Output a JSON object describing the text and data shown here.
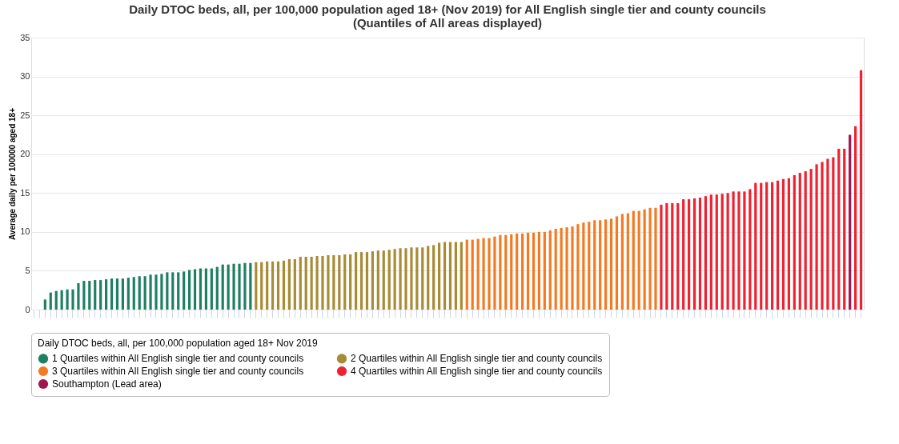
{
  "chart_data": {
    "type": "bar",
    "title": "Daily DTOC beds, all, per 100,000 population aged 18+ (Nov 2019) for All English single tier and county councils (Quantiles of All areas displayed)",
    "ylabel": "Average daily per 100000 aged 18+",
    "legend_title": "Daily DTOC beds, all, per 100,000 population aged 18+ Nov 2019",
    "categories": [
      null,
      null,
      null,
      null,
      null,
      null,
      null,
      null,
      null,
      null,
      null,
      null,
      null,
      null,
      null,
      null,
      null,
      null,
      null,
      null,
      null,
      null,
      null,
      null,
      null,
      null,
      null,
      null,
      null,
      null,
      null,
      null,
      null,
      null,
      null,
      null,
      null,
      null,
      null,
      null,
      null,
      null,
      null,
      null,
      null,
      null,
      null,
      null,
      null,
      null,
      null,
      null,
      null,
      null,
      null,
      null,
      null,
      null,
      null,
      null,
      null,
      null,
      null,
      null,
      null,
      null,
      null,
      null,
      null,
      null,
      null,
      null,
      null,
      null,
      null,
      null,
      null,
      null,
      null,
      null,
      null,
      null,
      null,
      null,
      null,
      null,
      null,
      null,
      null,
      null,
      null,
      null,
      null,
      null,
      null,
      null,
      null,
      null,
      null,
      null,
      null,
      null,
      null,
      null,
      null,
      null,
      null,
      null,
      null,
      null,
      null,
      null,
      null,
      null,
      null,
      null,
      null,
      null,
      null,
      null,
      null,
      null,
      null,
      null,
      null,
      null,
      null,
      null,
      null,
      null,
      null,
      null,
      null,
      null,
      null,
      null,
      null,
      null,
      null,
      null,
      null,
      null,
      null,
      null,
      null,
      null,
      null,
      null,
      null,
      null
    ],
    "series": [
      {
        "name": "1 Quartiles within All English single tier and county councils",
        "color": "#1f7f62",
        "values": [
          null,
          null,
          1.3,
          2.2,
          2.4,
          2.5,
          2.6,
          2.6,
          3.4,
          3.7,
          3.7,
          3.8,
          3.8,
          3.9,
          4.0,
          4.0,
          4.0,
          4.1,
          4.2,
          4.3,
          4.3,
          4.5,
          4.5,
          4.6,
          4.8,
          4.8,
          4.8,
          4.9,
          5.1,
          5.2,
          5.3,
          5.3,
          5.3,
          5.5,
          5.8,
          5.8,
          5.9,
          5.9,
          6.0,
          6.0,
          null,
          null,
          null,
          null,
          null,
          null,
          null,
          null,
          null,
          null,
          null,
          null,
          null,
          null,
          null,
          null,
          null,
          null,
          null,
          null,
          null,
          null,
          null,
          null,
          null,
          null,
          null,
          null,
          null,
          null,
          null,
          null,
          null,
          null,
          null,
          null,
          null,
          null,
          null,
          null,
          null,
          null,
          null,
          null,
          null,
          null,
          null,
          null,
          null,
          null,
          null,
          null,
          null,
          null,
          null,
          null,
          null,
          null,
          null,
          null,
          null,
          null,
          null,
          null,
          null,
          null,
          null,
          null,
          null,
          null,
          null,
          null,
          null,
          null,
          null,
          null,
          null,
          null,
          null,
          null,
          null,
          null,
          null,
          null,
          null,
          null,
          null,
          null,
          null,
          null,
          null,
          null,
          null,
          null,
          null,
          null,
          null,
          null,
          null,
          null,
          null,
          null,
          null,
          null,
          null,
          null,
          null,
          null,
          null,
          null
        ]
      },
      {
        "name": "2 Quartiles within All English single tier and county councils",
        "color": "#a88b35",
        "values": [
          null,
          null,
          null,
          null,
          null,
          null,
          null,
          null,
          null,
          null,
          null,
          null,
          null,
          null,
          null,
          null,
          null,
          null,
          null,
          null,
          null,
          null,
          null,
          null,
          null,
          null,
          null,
          null,
          null,
          null,
          null,
          null,
          null,
          null,
          null,
          null,
          null,
          null,
          null,
          null,
          6.1,
          6.1,
          6.2,
          6.2,
          6.2,
          6.3,
          6.5,
          6.5,
          6.8,
          6.8,
          6.8,
          6.9,
          6.9,
          7.0,
          7.0,
          7.0,
          7.1,
          7.1,
          7.4,
          7.4,
          7.4,
          7.5,
          7.6,
          7.6,
          7.7,
          7.8,
          7.9,
          7.9,
          8.0,
          8.0,
          8.0,
          8.2,
          8.3,
          8.6,
          8.7,
          8.7,
          8.7,
          8.7,
          null,
          null,
          null,
          null,
          null,
          null,
          null,
          null,
          null,
          null,
          null,
          null,
          null,
          null,
          null,
          null,
          null,
          null,
          null,
          null,
          null,
          null,
          null,
          null,
          null,
          null,
          null,
          null,
          null,
          null,
          null,
          null,
          null,
          null,
          null,
          null,
          null,
          null,
          null,
          null,
          null,
          null,
          null,
          null,
          null,
          null,
          null,
          null,
          null,
          null,
          null,
          null,
          null,
          null,
          null,
          null,
          null,
          null,
          null,
          null,
          null,
          null,
          null,
          null,
          null,
          null,
          null,
          null,
          null,
          null,
          null,
          null
        ]
      },
      {
        "name": "3 Quartiles within All English single tier and county councils",
        "color": "#f47a22",
        "values": [
          null,
          null,
          null,
          null,
          null,
          null,
          null,
          null,
          null,
          null,
          null,
          null,
          null,
          null,
          null,
          null,
          null,
          null,
          null,
          null,
          null,
          null,
          null,
          null,
          null,
          null,
          null,
          null,
          null,
          null,
          null,
          null,
          null,
          null,
          null,
          null,
          null,
          null,
          null,
          null,
          null,
          null,
          null,
          null,
          null,
          null,
          null,
          null,
          null,
          null,
          null,
          null,
          null,
          null,
          null,
          null,
          null,
          null,
          null,
          null,
          null,
          null,
          null,
          null,
          null,
          null,
          null,
          null,
          null,
          null,
          null,
          null,
          null,
          null,
          null,
          null,
          null,
          null,
          9.0,
          9.0,
          9.1,
          9.2,
          9.2,
          9.4,
          9.6,
          9.6,
          9.7,
          9.8,
          9.8,
          9.9,
          9.9,
          10.0,
          10.0,
          10.2,
          10.4,
          10.5,
          10.6,
          10.7,
          11.0,
          11.2,
          11.3,
          11.5,
          11.5,
          11.6,
          11.7,
          12.0,
          12.3,
          12.4,
          12.7,
          12.7,
          12.9,
          13.1,
          13.1,
          null,
          null,
          null,
          null,
          null,
          null,
          null,
          null,
          null,
          null,
          null,
          null,
          null,
          null,
          null,
          null,
          null,
          null,
          null,
          null,
          null,
          null,
          null,
          null,
          null,
          null,
          null,
          null,
          null,
          null,
          null,
          null,
          null,
          null,
          null,
          null,
          null
        ]
      },
      {
        "name": "4 Quartiles within All English single tier and county councils",
        "color": "#ee2231",
        "values": [
          null,
          null,
          null,
          null,
          null,
          null,
          null,
          null,
          null,
          null,
          null,
          null,
          null,
          null,
          null,
          null,
          null,
          null,
          null,
          null,
          null,
          null,
          null,
          null,
          null,
          null,
          null,
          null,
          null,
          null,
          null,
          null,
          null,
          null,
          null,
          null,
          null,
          null,
          null,
          null,
          null,
          null,
          null,
          null,
          null,
          null,
          null,
          null,
          null,
          null,
          null,
          null,
          null,
          null,
          null,
          null,
          null,
          null,
          null,
          null,
          null,
          null,
          null,
          null,
          null,
          null,
          null,
          null,
          null,
          null,
          null,
          null,
          null,
          null,
          null,
          null,
          null,
          null,
          null,
          null,
          null,
          null,
          null,
          null,
          null,
          null,
          null,
          null,
          null,
          null,
          null,
          null,
          null,
          null,
          null,
          null,
          null,
          null,
          null,
          null,
          null,
          null,
          null,
          null,
          null,
          null,
          null,
          null,
          null,
          null,
          null,
          null,
          null,
          13.5,
          13.7,
          13.7,
          13.7,
          14.2,
          14.2,
          14.3,
          14.4,
          14.6,
          14.8,
          14.8,
          14.9,
          15.0,
          15.2,
          15.2,
          15.2,
          15.5,
          16.3,
          16.3,
          16.4,
          16.4,
          16.6,
          16.8,
          16.9,
          17.3,
          17.6,
          17.8,
          18.1,
          18.7,
          19.0,
          19.4,
          19.6,
          20.7,
          20.7,
          null,
          23.6,
          30.8
        ]
      },
      {
        "name": "Southampton (Lead area)",
        "color": "#a01750",
        "values": [
          null,
          null,
          null,
          null,
          null,
          null,
          null,
          null,
          null,
          null,
          null,
          null,
          null,
          null,
          null,
          null,
          null,
          null,
          null,
          null,
          null,
          null,
          null,
          null,
          null,
          null,
          null,
          null,
          null,
          null,
          null,
          null,
          null,
          null,
          null,
          null,
          null,
          null,
          null,
          null,
          null,
          null,
          null,
          null,
          null,
          null,
          null,
          null,
          null,
          null,
          null,
          null,
          null,
          null,
          null,
          null,
          null,
          null,
          null,
          null,
          null,
          null,
          null,
          null,
          null,
          null,
          null,
          null,
          null,
          null,
          null,
          null,
          null,
          null,
          null,
          null,
          null,
          null,
          null,
          null,
          null,
          null,
          null,
          null,
          null,
          null,
          null,
          null,
          null,
          null,
          null,
          null,
          null,
          null,
          null,
          null,
          null,
          null,
          null,
          null,
          null,
          null,
          null,
          null,
          null,
          null,
          null,
          null,
          null,
          null,
          null,
          null,
          null,
          null,
          null,
          null,
          null,
          null,
          null,
          null,
          null,
          null,
          null,
          null,
          null,
          null,
          null,
          null,
          null,
          null,
          null,
          null,
          null,
          null,
          null,
          null,
          null,
          null,
          null,
          null,
          null,
          null,
          null,
          null,
          null,
          null,
          null,
          22.5,
          null,
          null
        ]
      }
    ],
    "ylim": [
      0,
      35
    ],
    "yticks": [
      0,
      5,
      10,
      15,
      20,
      25,
      30,
      35
    ],
    "grid": "y",
    "legend": "bottom",
    "tick_labels": "y"
  }
}
